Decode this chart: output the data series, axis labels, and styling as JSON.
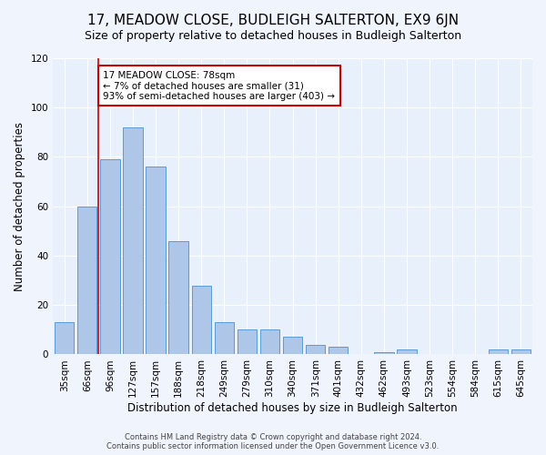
{
  "title": "17, MEADOW CLOSE, BUDLEIGH SALTERTON, EX9 6JN",
  "subtitle": "Size of property relative to detached houses in Budleigh Salterton",
  "xlabel": "Distribution of detached houses by size in Budleigh Salterton",
  "ylabel": "Number of detached properties",
  "categories": [
    "35sqm",
    "66sqm",
    "96sqm",
    "127sqm",
    "157sqm",
    "188sqm",
    "218sqm",
    "249sqm",
    "279sqm",
    "310sqm",
    "340sqm",
    "371sqm",
    "401sqm",
    "432sqm",
    "462sqm",
    "493sqm",
    "523sqm",
    "554sqm",
    "584sqm",
    "615sqm",
    "645sqm"
  ],
  "values": [
    13,
    60,
    79,
    92,
    76,
    46,
    28,
    13,
    10,
    10,
    7,
    4,
    3,
    0,
    1,
    2,
    0,
    0,
    0,
    2,
    2
  ],
  "bar_color": "#aec6e8",
  "bar_edge_color": "#5b9bd5",
  "vline_x": 1.5,
  "vline_color": "#cc0000",
  "annotation_text": "17 MEADOW CLOSE: 78sqm\n← 7% of detached houses are smaller (31)\n93% of semi-detached houses are larger (403) →",
  "annotation_box_color": "#ffffff",
  "annotation_box_edge": "#cc0000",
  "ylim": [
    0,
    120
  ],
  "yticks": [
    0,
    20,
    40,
    60,
    80,
    100,
    120
  ],
  "footer": "Contains HM Land Registry data © Crown copyright and database right 2024.\nContains public sector information licensed under the Open Government Licence v3.0.",
  "bg_color": "#e8f0fb",
  "fig_bg_color": "#f0f4fc",
  "title_fontsize": 11,
  "subtitle_fontsize": 9,
  "tick_fontsize": 7.5,
  "ylabel_fontsize": 8.5,
  "xlabel_fontsize": 8.5,
  "footer_fontsize": 6,
  "ann_fontsize": 7.5
}
